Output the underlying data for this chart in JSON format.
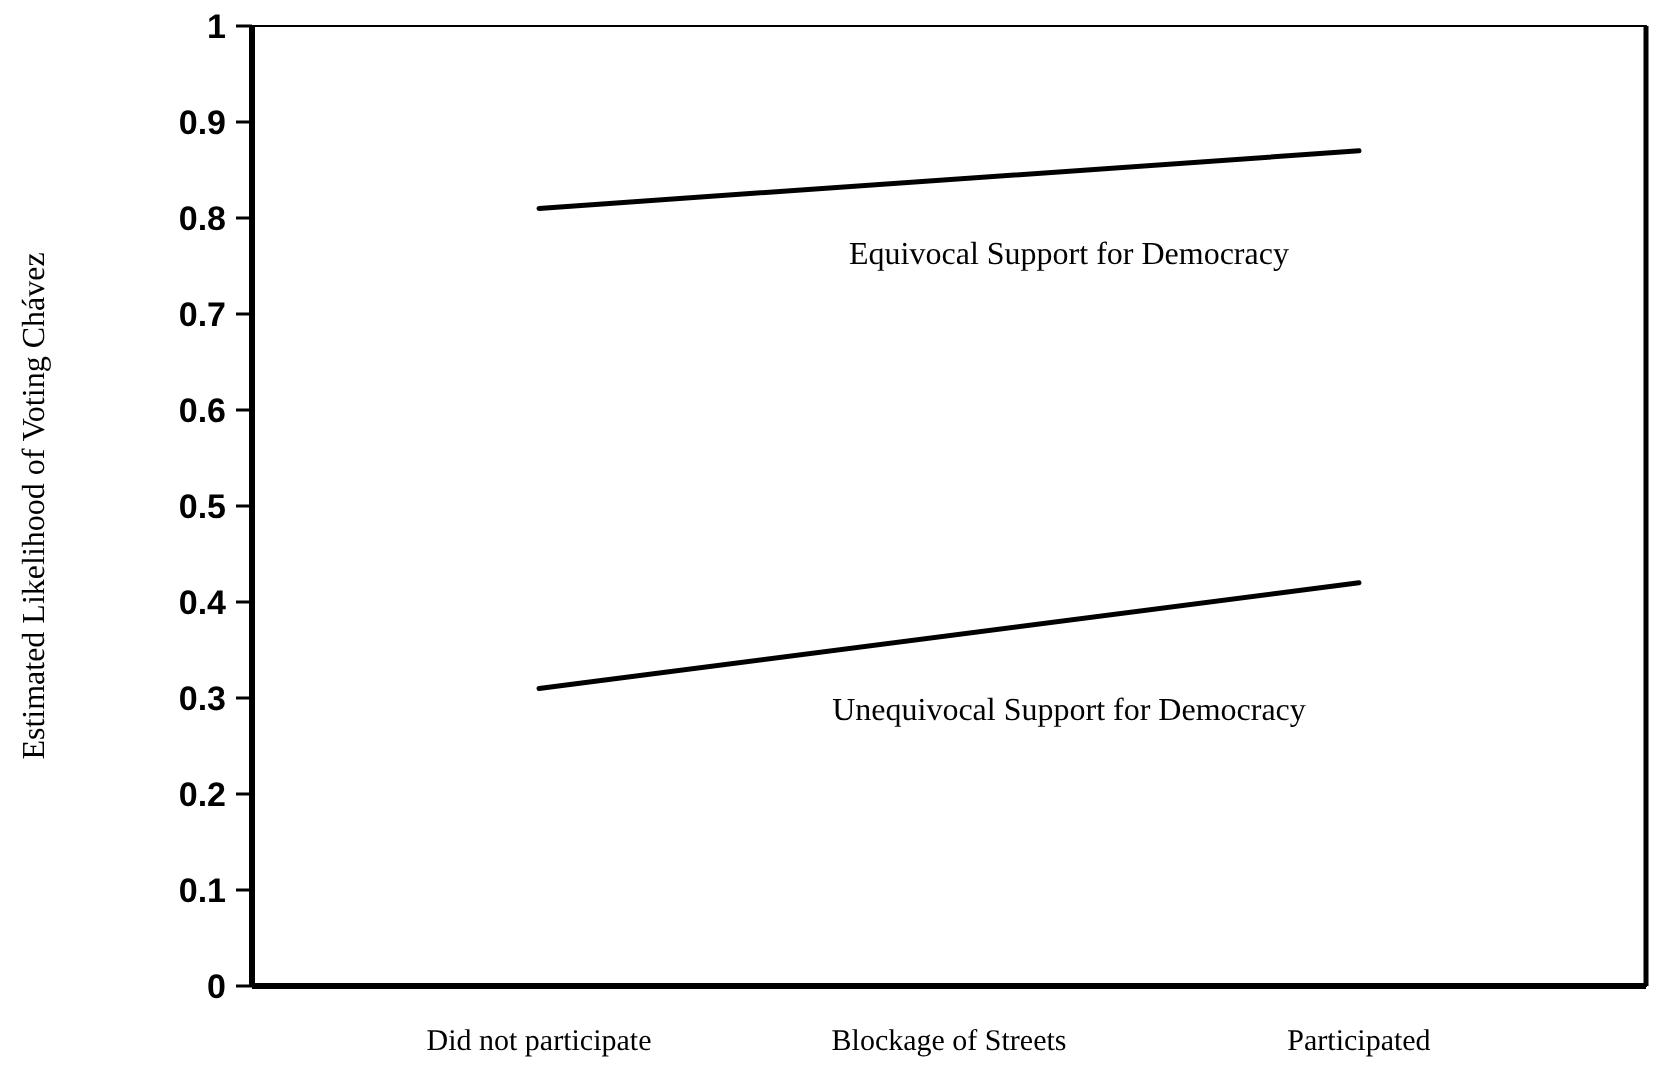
{
  "chart_data": {
    "type": "line",
    "xlabel": "Blockage of Streets",
    "ylabel": "Estimated Likelihood of Voting Chávez",
    "categories": [
      "Did not participate",
      "Participated"
    ],
    "series": [
      {
        "name": "Equivocal Support for Democracy",
        "color": "#000000",
        "values": [
          0.81,
          0.87
        ]
      },
      {
        "name": "Unequivocal Support for Democracy",
        "color": "#000000",
        "values": [
          0.31,
          0.42
        ]
      }
    ],
    "ylim": [
      0,
      1
    ],
    "yticks": [
      0,
      0.1,
      0.2,
      0.3,
      0.4,
      0.5,
      0.6,
      0.7,
      0.8,
      0.9,
      1
    ],
    "marker": "none",
    "line_style": "solid"
  }
}
